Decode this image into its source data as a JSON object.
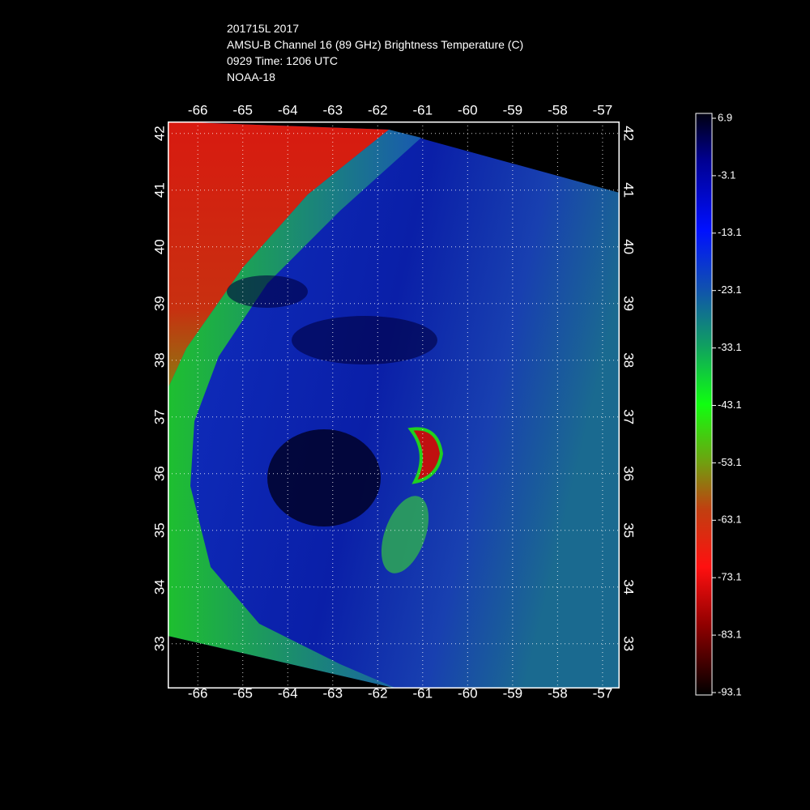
{
  "map": {
    "title_lines": [
      "201715L 2017",
      "AMSU-B Channel 16 (89 GHz) Brightness Temperature (C)",
      "0929 Time: 1206 UTC",
      "NOAA-18"
    ],
    "xlim": [
      -66.67,
      -56.62
    ],
    "ylim": [
      32.21,
      42.21
    ],
    "xticks": [
      -66,
      -65,
      -64,
      -63,
      -62,
      -61,
      -60,
      -59,
      -58,
      -57
    ],
    "yticks": [
      33,
      34,
      35,
      36,
      37,
      38,
      39,
      40,
      41,
      42
    ],
    "colorbar": {
      "lim": [
        -93.1,
        6.9
      ],
      "ticks": [
        6.9,
        -3.1,
        -13.1,
        -23.1,
        -33.1,
        -43.1,
        -53.1,
        -63.1,
        -73.1,
        -83.1,
        -93.1
      ]
    }
  }
}
